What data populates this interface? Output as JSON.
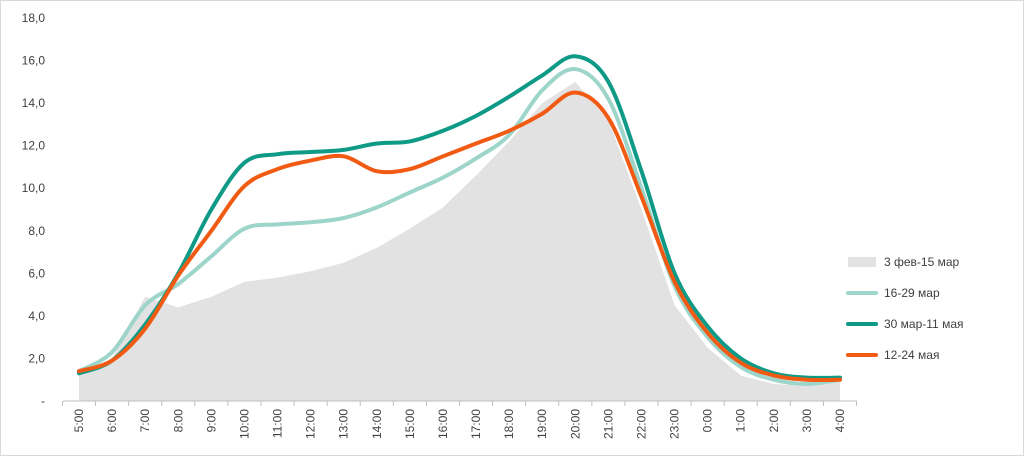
{
  "chart_data": {
    "type": "line",
    "categories": [
      "5:00",
      "6:00",
      "7:00",
      "8:00",
      "9:00",
      "10:00",
      "11:00",
      "12:00",
      "13:00",
      "14:00",
      "15:00",
      "16:00",
      "17:00",
      "18:00",
      "19:00",
      "20:00",
      "21:00",
      "22:00",
      "23:00",
      "0:00",
      "1:00",
      "2:00",
      "3:00",
      "4:00"
    ],
    "ylim": [
      0,
      18
    ],
    "yticks": [
      "-",
      "2,0",
      "4,0",
      "6,0",
      "8,0",
      "10,0",
      "12,0",
      "14,0",
      "16,0",
      "18,0"
    ],
    "ytick_values": [
      0,
      2,
      4,
      6,
      8,
      10,
      12,
      14,
      16,
      18
    ],
    "grid": false,
    "legend_position": "right",
    "series": [
      {
        "name": "3 фев-15 мар",
        "kind": "area",
        "color": "#e2e2e2",
        "values": [
          1.3,
          2.0,
          4.9,
          4.4,
          4.9,
          5.6,
          5.8,
          6.1,
          6.5,
          7.2,
          8.1,
          9.1,
          10.6,
          12.2,
          14.0,
          15.0,
          13.2,
          9.0,
          4.5,
          2.5,
          1.2,
          0.8,
          0.7,
          0.9
        ]
      },
      {
        "name": "16-29 мар",
        "kind": "line",
        "color": "#9dd5cb",
        "values": [
          1.4,
          2.3,
          4.5,
          5.5,
          6.8,
          8.1,
          8.3,
          8.4,
          8.6,
          9.1,
          9.8,
          10.5,
          11.4,
          12.5,
          14.6,
          15.6,
          14.2,
          10.0,
          5.4,
          3.0,
          1.6,
          1.0,
          0.8,
          1.0
        ]
      },
      {
        "name": "30 мар-11 мая",
        "kind": "line",
        "color": "#0e9a86",
        "values": [
          1.3,
          1.9,
          3.6,
          6.0,
          9.0,
          11.2,
          11.6,
          11.7,
          11.8,
          12.1,
          12.2,
          12.7,
          13.4,
          14.3,
          15.3,
          16.2,
          15.0,
          10.8,
          6.0,
          3.5,
          2.0,
          1.3,
          1.1,
          1.1
        ]
      },
      {
        "name": "12-24 мая",
        "kind": "line",
        "color": "#f15a13",
        "values": [
          1.4,
          1.9,
          3.4,
          5.9,
          8.0,
          10.1,
          10.9,
          11.3,
          11.5,
          10.8,
          10.9,
          11.5,
          12.1,
          12.7,
          13.5,
          14.5,
          13.3,
          9.6,
          5.6,
          3.2,
          1.8,
          1.2,
          1.0,
          1.0
        ]
      }
    ]
  }
}
